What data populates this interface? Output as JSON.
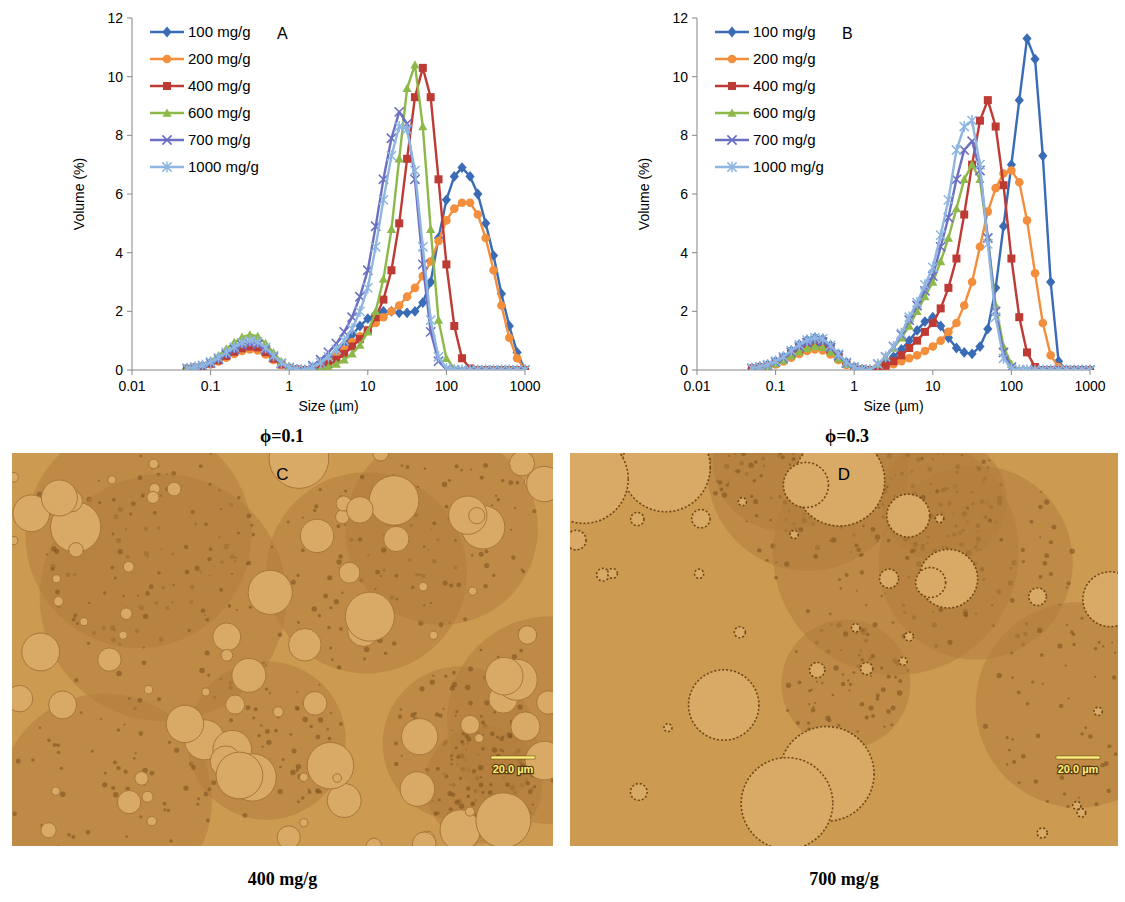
{
  "chart_data": [
    {
      "type": "line",
      "annotations": [
        "A"
      ],
      "subtitle": "ϕ=0.1",
      "x_label": "Size (µm)",
      "y_label": "Volume (%)",
      "log": "x",
      "grid": false,
      "legend": "upper left",
      "xlim": [
        0.01,
        1000
      ],
      "xticks": [
        0.01,
        0.1,
        1,
        10,
        100,
        1000
      ],
      "ylim": [
        0,
        12
      ],
      "yticks": [
        0,
        2,
        4,
        6,
        8,
        10,
        12
      ],
      "x": [
        0.05,
        0.063,
        0.079,
        0.1,
        0.126,
        0.158,
        0.2,
        0.251,
        0.316,
        0.398,
        0.501,
        0.631,
        0.794,
        1,
        1.26,
        1.58,
        2,
        2.51,
        3.16,
        3.98,
        5.01,
        6.31,
        7.94,
        10,
        12.6,
        15.8,
        20,
        25.1,
        31.6,
        39.8,
        50.1,
        63.1,
        79.4,
        100,
        126,
        158,
        200,
        251,
        316,
        398,
        501,
        631,
        794,
        1000
      ],
      "series": [
        {
          "name": "100 mg/g",
          "color": "#3A6BB5",
          "marker": "diamond",
          "values": [
            0.05,
            0.09,
            0.14,
            0.24,
            0.37,
            0.54,
            0.7,
            0.84,
            0.9,
            0.86,
            0.68,
            0.44,
            0.22,
            0.08,
            0.02,
            0,
            0.05,
            0.15,
            0.35,
            0.6,
            0.85,
            1.2,
            1.5,
            1.75,
            1.9,
            2.0,
            2.0,
            1.95,
            1.95,
            2.0,
            2.3,
            3.0,
            4.5,
            5.8,
            6.6,
            6.9,
            6.6,
            6.0,
            5.0,
            3.9,
            2.6,
            1.5,
            0.6,
            0
          ]
        },
        {
          "name": "200 mg/g",
          "color": "#F28E3C",
          "marker": "circle",
          "values": [
            0.04,
            0.07,
            0.11,
            0.19,
            0.29,
            0.42,
            0.55,
            0.65,
            0.7,
            0.67,
            0.53,
            0.34,
            0.17,
            0.06,
            0.01,
            0,
            0.05,
            0.12,
            0.3,
            0.5,
            0.7,
            0.95,
            1.15,
            1.35,
            1.6,
            1.8,
            2.0,
            2.2,
            2.5,
            2.8,
            3.2,
            3.7,
            4.4,
            5.1,
            5.5,
            5.7,
            5.7,
            5.3,
            4.5,
            3.4,
            2.2,
            1.1,
            0.4,
            0
          ]
        },
        {
          "name": "400 mg/g",
          "color": "#BE3A34",
          "marker": "square",
          "values": [
            0.04,
            0.08,
            0.13,
            0.22,
            0.33,
            0.48,
            0.62,
            0.74,
            0.8,
            0.77,
            0.61,
            0.39,
            0.19,
            0.07,
            0.02,
            0,
            0.02,
            0.08,
            0.2,
            0.35,
            0.55,
            0.8,
            1.05,
            1.35,
            1.8,
            2.4,
            3.4,
            5.0,
            7.2,
            9.3,
            10.3,
            9.3,
            6.5,
            3.6,
            1.5,
            0.4,
            0.05,
            0,
            0,
            0,
            0,
            0,
            0,
            0
          ]
        },
        {
          "name": "600 mg/g",
          "color": "#8DB84A",
          "marker": "triangle",
          "values": [
            0.06,
            0.12,
            0.19,
            0.32,
            0.49,
            0.72,
            0.94,
            1.12,
            1.2,
            1.15,
            0.91,
            0.59,
            0.29,
            0.11,
            0.02,
            0,
            0,
            0.03,
            0.1,
            0.2,
            0.35,
            0.55,
            0.85,
            1.3,
            2.0,
            3.1,
            4.8,
            7.2,
            9.6,
            10.4,
            8.3,
            4.8,
            1.7,
            0.4,
            0.05,
            0,
            0,
            0,
            0,
            0,
            0,
            0,
            0,
            0
          ]
        },
        {
          "name": "700 mg/g",
          "color": "#6B6FC2",
          "marker": "x",
          "values": [
            0.05,
            0.09,
            0.14,
            0.24,
            0.37,
            0.54,
            0.7,
            0.84,
            0.9,
            0.86,
            0.68,
            0.44,
            0.22,
            0.08,
            0.02,
            0,
            0.15,
            0.35,
            0.6,
            0.9,
            1.3,
            1.8,
            2.5,
            3.4,
            4.9,
            6.5,
            7.9,
            8.8,
            8.4,
            6.5,
            3.6,
            1.3,
            0.3,
            0.02,
            0,
            0,
            0,
            0,
            0,
            0,
            0,
            0,
            0,
            0
          ]
        },
        {
          "name": "1000 mg/g",
          "color": "#8FB6E0",
          "marker": "star",
          "values": [
            0.05,
            0.1,
            0.16,
            0.27,
            0.41,
            0.6,
            0.78,
            0.93,
            1.0,
            0.96,
            0.76,
            0.49,
            0.24,
            0.09,
            0.02,
            0,
            0.1,
            0.25,
            0.45,
            0.7,
            1.0,
            1.4,
            2.0,
            2.8,
            4.2,
            5.8,
            7.3,
            8.3,
            8.2,
            6.8,
            4.2,
            1.7,
            0.45,
            0.05,
            0,
            0,
            0,
            0,
            0,
            0,
            0,
            0,
            0,
            0
          ]
        }
      ]
    },
    {
      "type": "line",
      "annotations": [
        "B"
      ],
      "subtitle": "ϕ=0.3",
      "x_label": "Size (µm)",
      "y_label": "Volume (%)",
      "log": "x",
      "grid": false,
      "legend": "upper left",
      "xlim": [
        0.01,
        1000
      ],
      "xticks": [
        0.01,
        0.1,
        1,
        10,
        100,
        1000
      ],
      "ylim": [
        0,
        12
      ],
      "yticks": [
        0,
        2,
        4,
        6,
        8,
        10,
        12
      ],
      "x": [
        0.05,
        0.063,
        0.079,
        0.1,
        0.126,
        0.158,
        0.2,
        0.251,
        0.316,
        0.398,
        0.501,
        0.631,
        0.794,
        1,
        1.26,
        1.58,
        2,
        2.51,
        3.16,
        3.98,
        5.01,
        6.31,
        7.94,
        10,
        12.6,
        15.8,
        20,
        25.1,
        31.6,
        39.8,
        50.1,
        63.1,
        79.4,
        100,
        126,
        158,
        200,
        251,
        316,
        398,
        501,
        631,
        794,
        1000
      ],
      "series": [
        {
          "name": "100 mg/g",
          "color": "#3A6BB5",
          "marker": "diamond",
          "values": [
            0.06,
            0.11,
            0.18,
            0.3,
            0.45,
            0.66,
            0.86,
            1.02,
            1.1,
            1.06,
            0.84,
            0.54,
            0.26,
            0.1,
            0.02,
            0,
            0.1,
            0.25,
            0.45,
            0.7,
            1.0,
            1.35,
            1.65,
            1.8,
            1.5,
            1.1,
            0.75,
            0.6,
            0.55,
            0.8,
            1.4,
            2.8,
            4.9,
            7.0,
            9.2,
            11.3,
            10.6,
            7.3,
            3.0,
            0.3,
            0,
            0,
            0,
            0
          ]
        },
        {
          "name": "200 mg/g",
          "color": "#F28E3C",
          "marker": "circle",
          "values": [
            0.04,
            0.07,
            0.11,
            0.19,
            0.29,
            0.42,
            0.55,
            0.65,
            0.7,
            0.67,
            0.53,
            0.34,
            0.17,
            0.06,
            0.01,
            0,
            0.03,
            0.1,
            0.2,
            0.3,
            0.4,
            0.5,
            0.65,
            0.8,
            1.0,
            1.3,
            1.6,
            2.2,
            3.0,
            4.2,
            5.4,
            6.2,
            6.7,
            6.8,
            6.4,
            5.1,
            3.3,
            1.6,
            0.5,
            0.1,
            0,
            0,
            0,
            0
          ]
        },
        {
          "name": "400 mg/g",
          "color": "#BE3A34",
          "marker": "square",
          "values": [
            0.05,
            0.09,
            0.14,
            0.24,
            0.37,
            0.54,
            0.7,
            0.84,
            0.9,
            0.86,
            0.68,
            0.44,
            0.22,
            0.08,
            0.02,
            0,
            0.05,
            0.15,
            0.3,
            0.5,
            0.75,
            1.0,
            1.3,
            1.6,
            2.1,
            2.8,
            3.8,
            5.3,
            7.0,
            8.5,
            9.2,
            8.3,
            6.3,
            3.8,
            1.8,
            0.6,
            0.1,
            0,
            0,
            0,
            0,
            0,
            0,
            0
          ]
        },
        {
          "name": "600 mg/g",
          "color": "#8DB84A",
          "marker": "triangle",
          "values": [
            0.04,
            0.08,
            0.13,
            0.22,
            0.33,
            0.48,
            0.62,
            0.74,
            0.8,
            0.77,
            0.61,
            0.39,
            0.19,
            0.07,
            0.02,
            0,
            0.2,
            0.45,
            0.75,
            1.1,
            1.5,
            2.0,
            2.5,
            3.0,
            3.7,
            4.5,
            5.5,
            6.5,
            7.0,
            6.5,
            4.5,
            2.2,
            0.8,
            0.2,
            0,
            0,
            0,
            0,
            0,
            0,
            0,
            0,
            0,
            0
          ]
        },
        {
          "name": "700 mg/g",
          "color": "#6B6FC2",
          "marker": "x",
          "values": [
            0.05,
            0.1,
            0.16,
            0.27,
            0.41,
            0.6,
            0.78,
            0.93,
            1.0,
            0.96,
            0.76,
            0.49,
            0.24,
            0.09,
            0.02,
            0,
            0.2,
            0.45,
            0.8,
            1.2,
            1.7,
            2.2,
            2.7,
            3.2,
            4.2,
            5.2,
            6.5,
            7.5,
            7.8,
            6.8,
            4.5,
            2.0,
            0.6,
            0.1,
            0,
            0,
            0,
            0,
            0,
            0,
            0,
            0,
            0,
            0
          ]
        },
        {
          "name": "1000 mg/g",
          "color": "#8FB6E0",
          "marker": "star",
          "values": [
            0.06,
            0.11,
            0.18,
            0.3,
            0.45,
            0.66,
            0.86,
            1.02,
            1.1,
            1.06,
            0.84,
            0.54,
            0.26,
            0.1,
            0.02,
            0,
            0.2,
            0.45,
            0.8,
            1.25,
            1.8,
            2.3,
            2.9,
            3.5,
            4.6,
            5.8,
            7.5,
            8.3,
            8.5,
            7.0,
            4.3,
            1.8,
            0.4,
            0.05,
            0,
            0,
            0,
            0,
            0,
            0,
            0,
            0,
            0,
            0
          ]
        }
      ]
    }
  ],
  "micrographs": [
    {
      "label": "C",
      "scale_bar": "20.0 µm",
      "caption": "400 mg/g"
    },
    {
      "label": "D",
      "scale_bar": "20.0 µm",
      "caption": "700 mg/g"
    }
  ]
}
